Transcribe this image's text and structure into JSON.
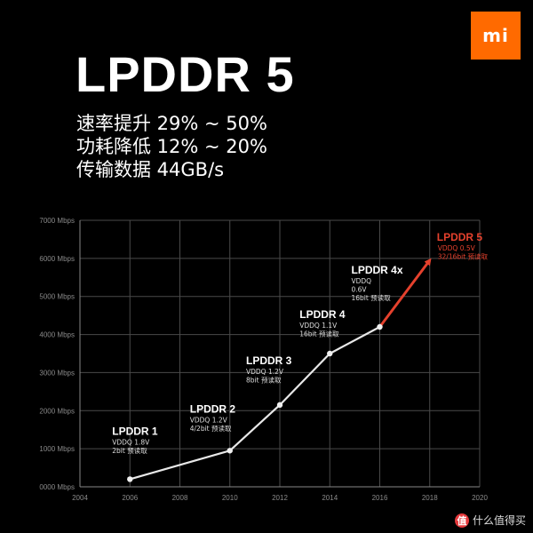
{
  "logo": {
    "text": "mi",
    "color": "#ff6a00"
  },
  "title": "LPDDR 5",
  "features": [
    "速率提升 29% ~ 50%",
    "功耗降低 12% ~ 20%",
    "传输数据 44GB/s"
  ],
  "chart_data": {
    "type": "line",
    "x_ticks": [
      "2004",
      "2006",
      "2008",
      "2010",
      "2012",
      "2014",
      "2016",
      "2018",
      "2020"
    ],
    "y_ticks": [
      "0000 Mbps",
      "1000 Mbps",
      "2000 Mbps",
      "3000 Mbps",
      "4000 Mbps",
      "5000 Mbps",
      "6000 Mbps",
      "7000 Mbps"
    ],
    "xlim": [
      2004,
      2020
    ],
    "ylim": [
      0,
      7000
    ],
    "grid": true,
    "series": [
      {
        "values": [
          [
            2006,
            200
          ],
          [
            2010,
            950
          ],
          [
            2012,
            2150
          ],
          [
            2014,
            3500
          ],
          [
            2016,
            4200
          ]
        ],
        "color": "#e8e8e8"
      },
      {
        "values": [
          [
            2016,
            4200
          ],
          [
            2018,
            5950
          ]
        ],
        "color": "#e5412d"
      }
    ],
    "annotations": [
      {
        "x": 2006,
        "y": 200,
        "name": "LPDDR 1",
        "details": [
          "VDDQ 1.8V",
          "2bit 预读取"
        ]
      },
      {
        "x": 2010,
        "y": 950,
        "name": "LPDDR 2",
        "details": [
          "VDDQ 1.2V",
          "4/2bit 预读取"
        ]
      },
      {
        "x": 2012,
        "y": 2150,
        "name": "LPDDR 3",
        "details": [
          "VDDQ 1.2V",
          "8bit 预读取"
        ]
      },
      {
        "x": 2014,
        "y": 3500,
        "name": "LPDDR 4",
        "details": [
          "VDDQ 1.1V",
          "16bit 预读取"
        ]
      },
      {
        "x": 2016,
        "y": 4200,
        "name": "LPDDR 4x",
        "details": [
          "VDDQ",
          "0.6V",
          "16bit 预读取"
        ]
      },
      {
        "x": 2018,
        "y": 5950,
        "name": "LPDDR 5",
        "details": [
          "VDDQ 0.5V",
          "32/16bit 预读取"
        ],
        "highlight": true
      }
    ]
  },
  "watermark": {
    "badge": "值",
    "text": "什么值得买"
  }
}
